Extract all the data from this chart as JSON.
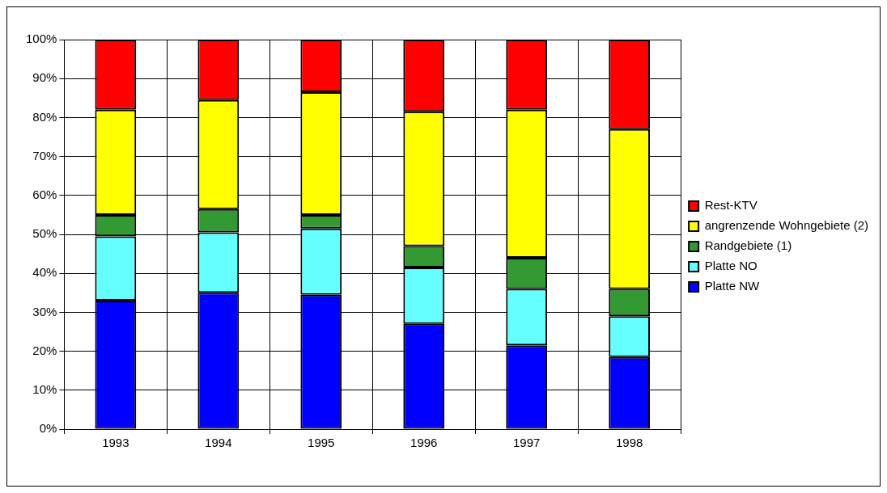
{
  "chart_data": {
    "type": "bar",
    "stacked": true,
    "categories": [
      "1993",
      "1994",
      "1995",
      "1996",
      "1997",
      "1998"
    ],
    "series": [
      {
        "name": "Platte NW",
        "color": "#0000ff",
        "values": [
          33,
          35,
          34.5,
          27,
          21.5,
          18.5
        ]
      },
      {
        "name": "Platte NO",
        "color": "#66ffff",
        "values": [
          16.5,
          15.5,
          17,
          14.5,
          14.5,
          10.5
        ]
      },
      {
        "name": "Randgebiete (1)",
        "color": "#339933",
        "values": [
          5.5,
          6,
          3.5,
          5.5,
          8,
          7
        ]
      },
      {
        "name": "angrenzende Wohngebiete (2)",
        "color": "#ffff00",
        "values": [
          27,
          28,
          31.5,
          34.5,
          38,
          41
        ]
      },
      {
        "name": "Rest-KTV",
        "color": "#ff0000",
        "values": [
          18,
          15.5,
          13.5,
          18.5,
          18,
          23
        ]
      }
    ],
    "ylim": [
      0,
      100
    ],
    "yticks": [
      {
        "value": 0,
        "label": "0%"
      },
      {
        "value": 10,
        "label": "10%"
      },
      {
        "value": 20,
        "label": "20%"
      },
      {
        "value": 30,
        "label": "30%"
      },
      {
        "value": 40,
        "label": "40%"
      },
      {
        "value": 50,
        "label": "50%"
      },
      {
        "value": 60,
        "label": "60%"
      },
      {
        "value": 70,
        "label": "70%"
      },
      {
        "value": 80,
        "label": "80%"
      },
      {
        "value": 90,
        "label": "90%"
      },
      {
        "value": 100,
        "label": "100%"
      }
    ],
    "grid": true,
    "legend": "right"
  }
}
